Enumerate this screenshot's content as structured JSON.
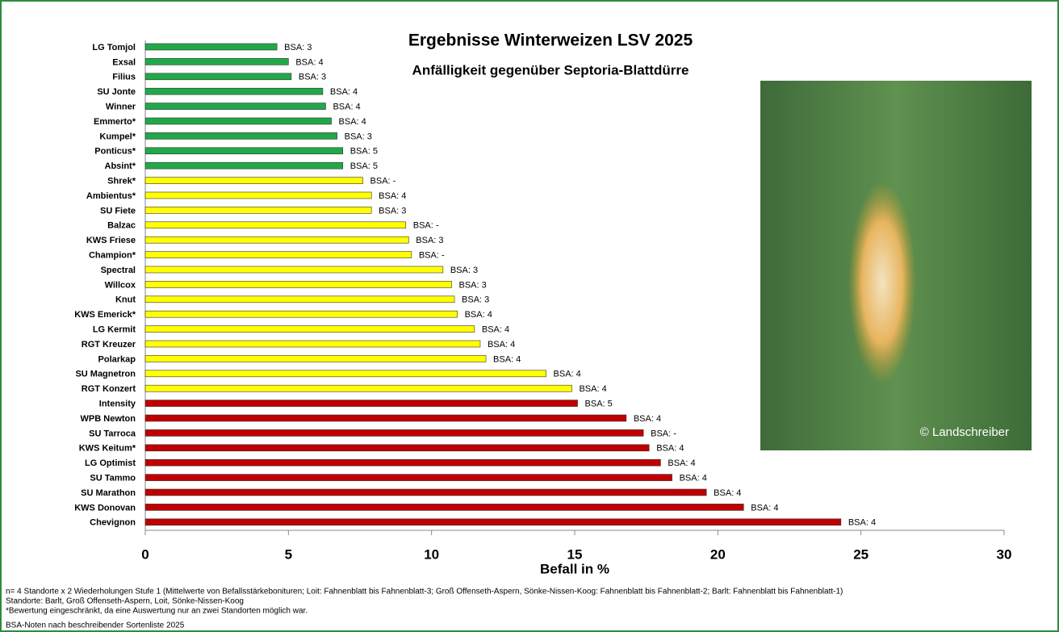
{
  "chart_data": {
    "type": "hbar",
    "title": "Ergebnisse Winterweizen LSV 2025",
    "subtitle": "Anfälligkeit gegenüber Septoria-Blattdürre",
    "xlabel": "Befall in %",
    "categories": [
      "LG Tomjol",
      "Exsal",
      "Filius",
      "SU Jonte",
      "Winner",
      "Emmerto*",
      "Kumpel*",
      "Ponticus*",
      "Absint*",
      "Shrek*",
      "Ambientus*",
      "SU Fiete",
      "Balzac",
      "KWS Friese",
      "Champion*",
      "Spectral",
      "Willcox",
      "Knut",
      "KWS Emerick*",
      "LG Kermit",
      "RGT Kreuzer",
      "Polarkap",
      "SU Magnetron",
      "RGT Konzert",
      "Intensity",
      "WPB Newton",
      "SU Tarroca",
      "KWS Keitum*",
      "LG Optimist",
      "SU Tammo",
      "SU Marathon",
      "KWS Donovan",
      "Chevignon"
    ],
    "values": [
      4.6,
      5.0,
      5.1,
      6.2,
      6.3,
      6.5,
      6.7,
      6.9,
      6.9,
      7.6,
      7.9,
      7.9,
      9.1,
      9.2,
      9.3,
      10.4,
      10.7,
      10.8,
      10.9,
      11.5,
      11.7,
      11.9,
      14.0,
      14.9,
      15.1,
      16.8,
      17.4,
      17.6,
      18.0,
      18.4,
      19.6,
      20.9,
      24.3
    ],
    "colors": [
      "#21a84a",
      "#21a84a",
      "#21a84a",
      "#21a84a",
      "#21a84a",
      "#21a84a",
      "#21a84a",
      "#21a84a",
      "#21a84a",
      "#ffff00",
      "#ffff00",
      "#ffff00",
      "#ffff00",
      "#ffff00",
      "#ffff00",
      "#ffff00",
      "#ffff00",
      "#ffff00",
      "#ffff00",
      "#ffff00",
      "#ffff00",
      "#ffff00",
      "#ffff00",
      "#ffff00",
      "#c00000",
      "#c00000",
      "#c00000",
      "#c00000",
      "#c00000",
      "#c00000",
      "#c00000",
      "#c00000",
      "#c00000"
    ],
    "annotations": [
      "BSA: 3",
      "BSA: 4",
      "BSA: 3",
      "BSA: 4",
      "BSA: 4",
      "BSA: 4",
      "BSA: 3",
      "BSA: 5",
      "BSA: 5",
      "BSA: -",
      "BSA: 4",
      "BSA: 3",
      "BSA: -",
      "BSA: 3",
      "BSA: -",
      "BSA: 3",
      "BSA: 3",
      "BSA: 3",
      "BSA: 4",
      "BSA: 4",
      "BSA: 4",
      "BSA: 4",
      "BSA: 4",
      "BSA: 4",
      "BSA: 5",
      "BSA: 4",
      "BSA: -",
      "BSA: 4",
      "BSA: 4",
      "BSA: 4",
      "BSA: 4",
      "BSA: 4",
      "BSA: 4"
    ],
    "xlim": [
      0,
      30
    ],
    "xticks": [
      0,
      5,
      10,
      15,
      20,
      25,
      30
    ],
    "image_credit": "© Landschreiber",
    "notes": [
      "n= 4 Standorte x 2 Wiederholungen Stufe 1  (Mittelwerte von Befallsstärkebonituren; Loit: Fahnenblatt bis Fahnenblatt-3; Groß Offenseth-Aspern, Sönke-Nissen-Koog: Fahnenblatt bis Fahnenblatt-2; Barlt: Fahnenblatt bis Fahnenblatt-1)",
      "Standorte: Barlt, Groß Offenseth-Aspern, Loit, Sönke-Nissen-Koog",
      "*Bewertung eingeschränkt, da eine Auswertung nur an zwei Standorten möglich war.",
      "BSA-Noten nach beschreibender Sortenliste 2025"
    ]
  }
}
